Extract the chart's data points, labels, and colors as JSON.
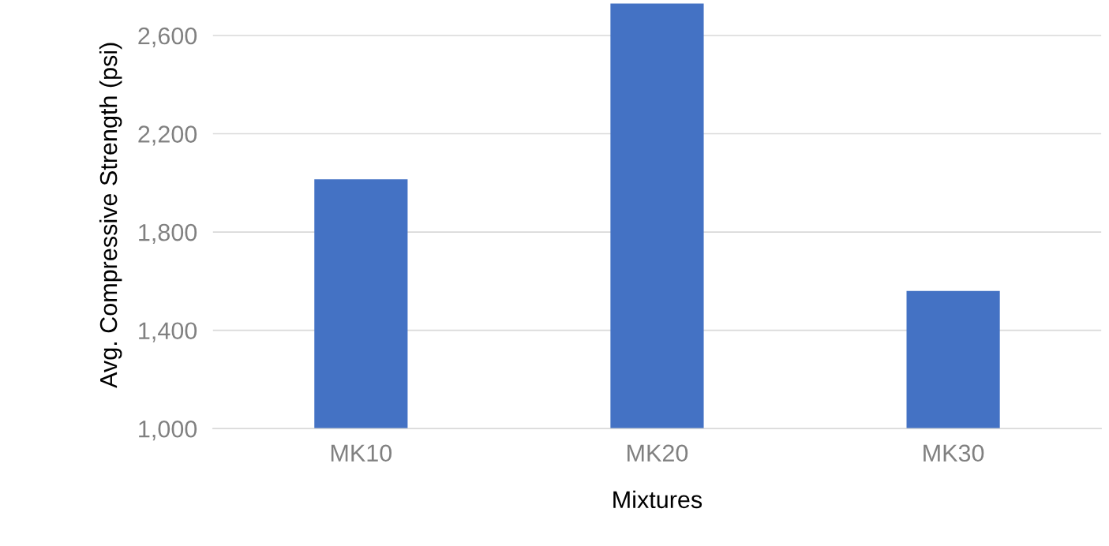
{
  "chart_data": {
    "type": "bar",
    "xlabel": "Mixtures",
    "ylabel": "Avg. Compressive Strength (psi)",
    "categories": [
      "MK10",
      "MK20",
      "MK30"
    ],
    "values": [
      2015,
      2730,
      1560
    ],
    "color": "#4472c4",
    "ylim": [
      1000,
      2740
    ],
    "yticks": [
      {
        "value": 1000,
        "label": "1,000"
      },
      {
        "value": 1400,
        "label": "1,400"
      },
      {
        "value": 1800,
        "label": "1,800"
      },
      {
        "value": 2200,
        "label": "2,200"
      },
      {
        "value": 2600,
        "label": "2,600"
      }
    ],
    "grid": "y"
  }
}
